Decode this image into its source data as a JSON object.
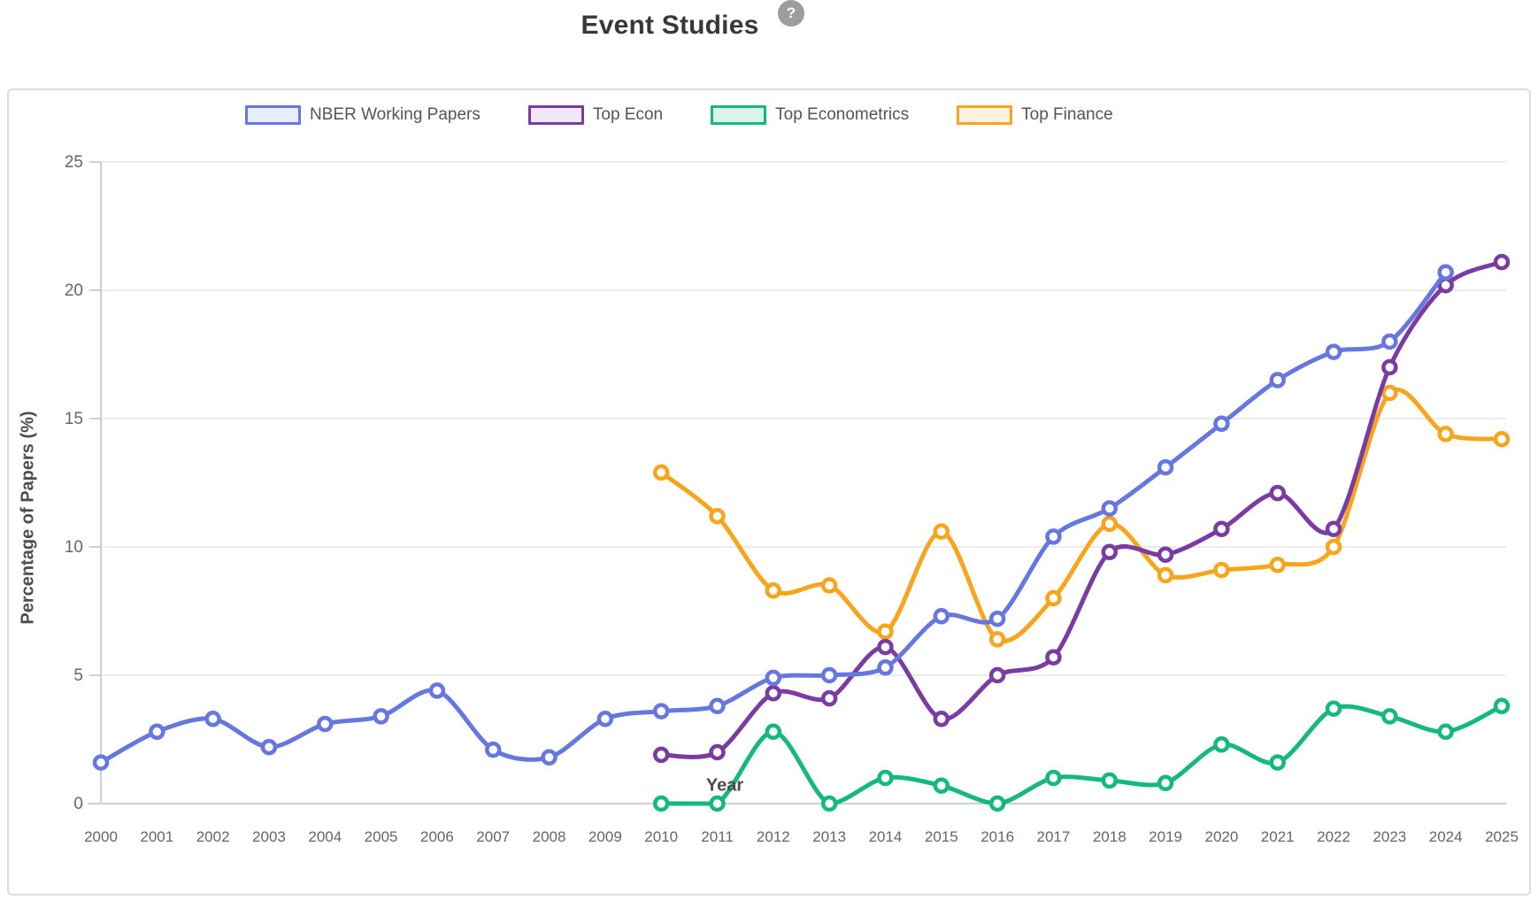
{
  "page": {
    "title": "Event Studies",
    "help_label": "?"
  },
  "axes": {
    "x_title": "Year",
    "y_title": "Percentage of Papers (%)",
    "y_ticks": [
      0,
      5,
      10,
      15,
      20,
      25
    ],
    "x_ticks": [
      2000,
      2001,
      2002,
      2003,
      2004,
      2005,
      2006,
      2007,
      2008,
      2009,
      2010,
      2011,
      2012,
      2013,
      2014,
      2015,
      2016,
      2017,
      2018,
      2019,
      2020,
      2021,
      2022,
      2023,
      2024,
      2025
    ]
  },
  "colors": {
    "grid": "#ececec",
    "axis_line": "#cfcfcf",
    "tick_text": "#666666"
  },
  "chart_data": {
    "type": "line",
    "title": "Event Studies",
    "xlabel": "Year",
    "ylabel": "Percentage of Papers (%)",
    "xlim": [
      2000,
      2025
    ],
    "ylim": [
      0,
      25
    ],
    "grid": true,
    "legend_position": "top",
    "x": [
      2000,
      2001,
      2002,
      2003,
      2004,
      2005,
      2006,
      2007,
      2008,
      2009,
      2010,
      2011,
      2012,
      2013,
      2014,
      2015,
      2016,
      2017,
      2018,
      2019,
      2020,
      2021,
      2022,
      2023,
      2024,
      2025
    ],
    "series": [
      {
        "name": "NBER Working Papers",
        "color": "#6677e0",
        "fill": "#e8edfb",
        "x": [
          2000,
          2001,
          2002,
          2003,
          2004,
          2005,
          2006,
          2007,
          2008,
          2009,
          2010,
          2011,
          2012,
          2013,
          2014,
          2015,
          2016,
          2017,
          2018,
          2019,
          2020,
          2021,
          2022,
          2023,
          2024
        ],
        "values": [
          1.6,
          2.8,
          3.3,
          2.2,
          3.1,
          3.4,
          4.4,
          2.1,
          1.8,
          3.3,
          3.6,
          3.8,
          4.9,
          5.0,
          5.3,
          7.3,
          7.2,
          10.4,
          11.5,
          13.1,
          14.8,
          16.5,
          17.6,
          18.0,
          20.7
        ]
      },
      {
        "name": "Top Econ",
        "color": "#7a3ba2",
        "fill": "#f0e7f7",
        "x": [
          2010,
          2011,
          2012,
          2013,
          2014,
          2015,
          2016,
          2017,
          2018,
          2019,
          2020,
          2021,
          2022,
          2023,
          2024,
          2025
        ],
        "values": [
          1.9,
          2.0,
          4.3,
          4.1,
          6.1,
          3.3,
          5.0,
          5.7,
          9.8,
          9.7,
          10.7,
          12.1,
          10.7,
          17.0,
          20.2,
          21.1
        ]
      },
      {
        "name": "Top Econometrics",
        "color": "#15b97f",
        "fill": "#dcf3e9",
        "x": [
          2010,
          2011,
          2012,
          2013,
          2014,
          2015,
          2016,
          2017,
          2018,
          2019,
          2020,
          2021,
          2022,
          2023,
          2024,
          2025
        ],
        "values": [
          0.0,
          0.0,
          2.8,
          0.0,
          1.0,
          0.7,
          0.0,
          1.0,
          0.9,
          0.8,
          2.3,
          1.6,
          3.7,
          3.4,
          2.8,
          3.8
        ]
      },
      {
        "name": "Top Finance",
        "color": "#f6a51d",
        "fill": "#fdf2dd",
        "x": [
          2010,
          2011,
          2012,
          2013,
          2014,
          2015,
          2016,
          2017,
          2018,
          2019,
          2020,
          2021,
          2022,
          2023,
          2024,
          2025
        ],
        "values": [
          12.9,
          11.2,
          8.3,
          8.5,
          6.7,
          10.6,
          6.4,
          8.0,
          10.9,
          8.9,
          9.1,
          9.3,
          10.0,
          16.0,
          14.4,
          14.2
        ]
      }
    ]
  }
}
